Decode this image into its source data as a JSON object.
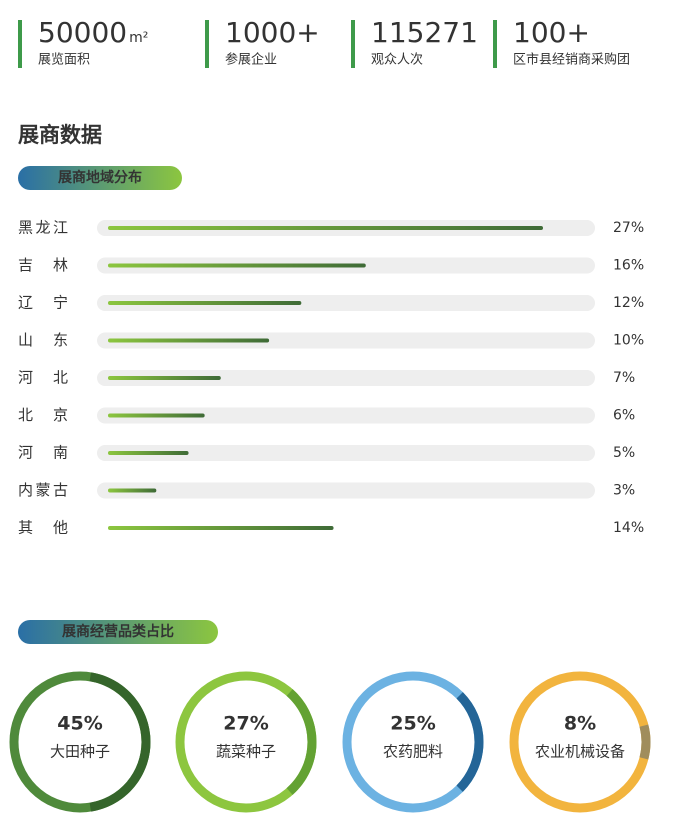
{
  "stats": [
    {
      "value": "50000",
      "unit": "m²",
      "label": "展览面积"
    },
    {
      "value": "1000+",
      "label": "参展企业"
    },
    {
      "value": "115271",
      "label": "观众人次"
    },
    {
      "value": "100+",
      "label": "区市县经销商采购团"
    }
  ],
  "stat_color": "#3e9a4a",
  "heading": "展商数据",
  "chart_data": [
    {
      "type": "bar",
      "orientation": "horizontal",
      "title": "展商地域分布",
      "categories": [
        "黑龙江",
        "吉林",
        "辽宁",
        "山东",
        "河北",
        "北京",
        "河南",
        "内蒙古",
        "其他"
      ],
      "values": [
        27,
        16,
        12,
        10,
        7,
        6,
        5,
        3,
        14
      ],
      "value_labels": [
        "27%",
        "16%",
        "12%",
        "10%",
        "7%",
        "6%",
        "5%",
        "3%",
        "14%"
      ],
      "color_start": "#8cc63f",
      "color_end": "#3f6b37",
      "track_color": "#eeeeee"
    },
    {
      "type": "ring",
      "title": "展商经营品类占比",
      "categories": [
        "大田种子",
        "蔬菜种子",
        "农药肥料",
        "农业机械设备"
      ],
      "values": [
        45,
        27,
        25,
        8
      ],
      "value_labels": [
        "45%",
        "27%",
        "25%",
        "8%"
      ],
      "colors": [
        {
          "ring": "#4f8a3b",
          "arc": "#35652b"
        },
        {
          "ring": "#8dc63f",
          "arc": "#63a233"
        },
        {
          "ring": "#6cb2e2",
          "arc": "#246597"
        },
        {
          "ring": "#f2b43e",
          "arc": "#a08d5c"
        }
      ]
    }
  ]
}
